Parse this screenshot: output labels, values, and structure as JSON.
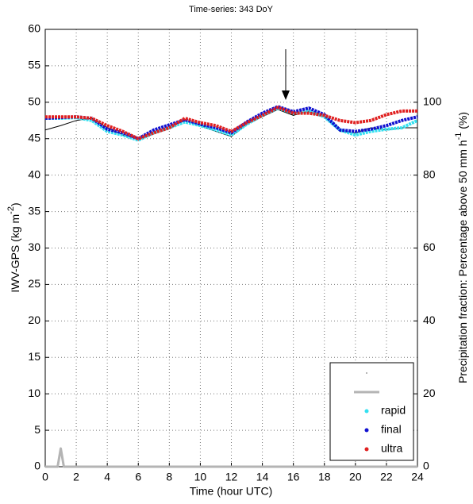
{
  "chart_data": {
    "type": "line",
    "title": "Time-series: 343 DoY",
    "xlabel": "Time (hour UTC)",
    "ylabel": [
      "IWV-GPS (kg m",
      "-2",
      ")"
    ],
    "y2label": [
      "Precipitation fraction: Percentage above 50 mm h",
      "-1",
      " (%)"
    ],
    "x": [
      0,
      1,
      2,
      3,
      4,
      5,
      6,
      7,
      8,
      9,
      10,
      11,
      12,
      13,
      14,
      15,
      16,
      17,
      18,
      19,
      20,
      21,
      22,
      23,
      24
    ],
    "xlim": [
      0,
      24
    ],
    "xticks": [
      0,
      2,
      4,
      6,
      8,
      10,
      12,
      14,
      16,
      18,
      20,
      22,
      24
    ],
    "ylim": [
      0,
      60
    ],
    "yticks": [
      0,
      5,
      10,
      15,
      20,
      25,
      30,
      35,
      40,
      45,
      50,
      55,
      60
    ],
    "y2lim": [
      0,
      120
    ],
    "y2ticks": [
      0,
      20,
      40,
      60,
      80,
      100
    ],
    "grid": true,
    "legend": "lower right",
    "series": [
      {
        "color": "#000000",
        "marker": "line",
        "values": [
          46.2,
          46.8,
          47.5,
          47.8,
          46.5,
          45.5,
          45,
          45.8,
          46.5,
          47.5,
          46.8,
          46,
          45.3,
          47,
          48,
          49,
          48.2,
          48.8,
          48,
          46,
          45.8,
          46.5,
          46.2,
          46.5,
          46.5
        ]
      },
      {
        "color": "#b4b4b4",
        "marker": "line",
        "axis": "y2",
        "x": [
          0,
          0.8,
          1,
          1.2,
          24
        ],
        "values": [
          0,
          0,
          5,
          0,
          0
        ]
      },
      {
        "name": "rapid",
        "color": "#33e0f0",
        "marker": "dot",
        "values": [
          47.8,
          47.8,
          47.9,
          47.5,
          46,
          45.5,
          44.8,
          45.8,
          46.5,
          47.3,
          46.8,
          46.2,
          45.5,
          47,
          48.2,
          49.2,
          48.5,
          48.8,
          48,
          46.2,
          45.5,
          46,
          46.3,
          46.5,
          47.5
        ]
      },
      {
        "name": "final",
        "color": "#1010d0",
        "marker": "dot",
        "values": [
          47.8,
          47.9,
          48,
          47.8,
          46.3,
          45.8,
          45,
          46.2,
          46.9,
          47.6,
          47,
          46.5,
          45.8,
          47.3,
          48.5,
          49.4,
          48.7,
          49.2,
          48.3,
          46.2,
          46,
          46.3,
          46.8,
          47.5,
          48
        ]
      },
      {
        "name": "ultra",
        "color": "#e02020",
        "marker": "dot",
        "values": [
          48,
          48,
          48,
          47.8,
          46.8,
          46,
          45,
          45.8,
          46.5,
          47.8,
          47.2,
          46.8,
          46,
          47.2,
          48.2,
          49.3,
          48.5,
          48.5,
          48.2,
          47.5,
          47.2,
          47.5,
          48.3,
          48.8,
          48.8
        ]
      }
    ]
  }
}
